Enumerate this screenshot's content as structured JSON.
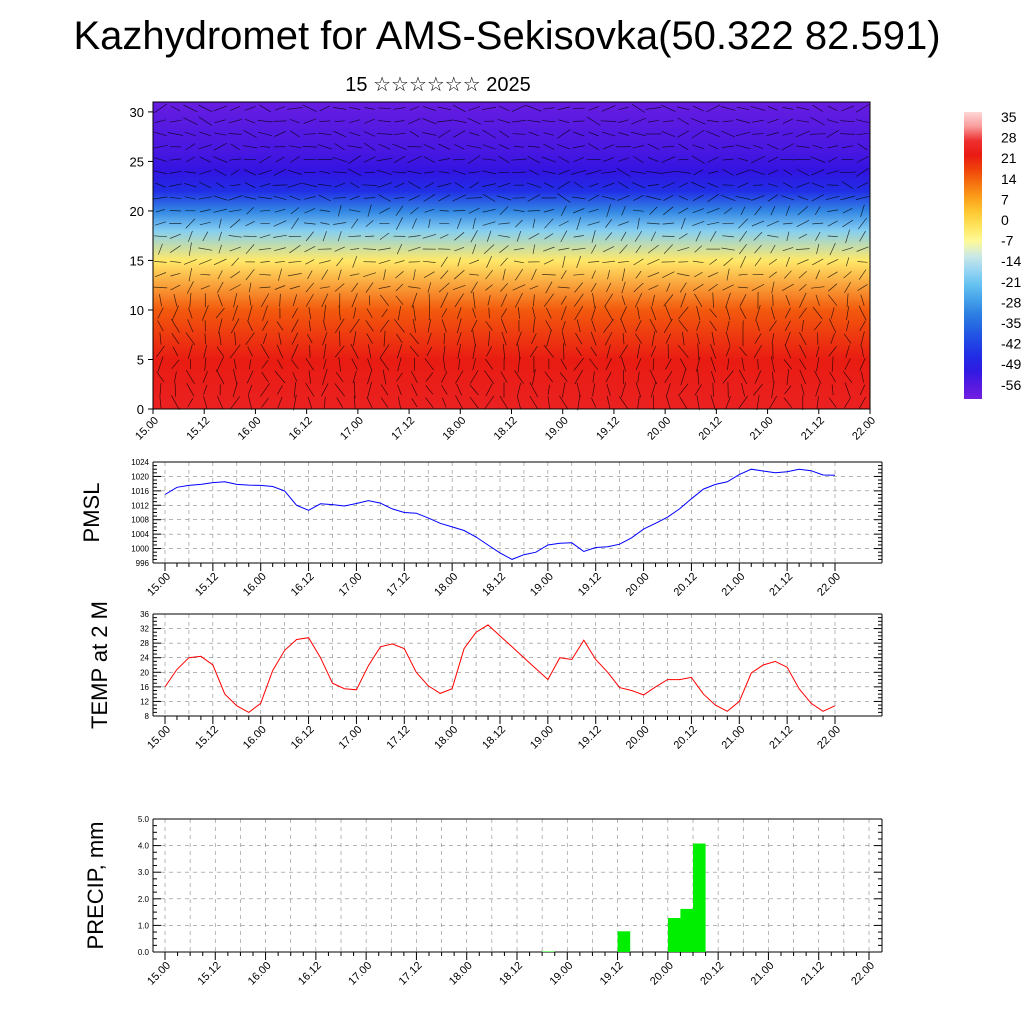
{
  "title": "Kazhydromet for AMS-Sekisovka(50.322 82.591)",
  "subtitle": "15 ☆☆☆☆☆☆ 2025",
  "colors": {
    "pmsl_line": "#0000ff",
    "temp_line": "#ff0000",
    "precip_bar": "#00ee00",
    "frame": "#000000",
    "grid": "#888888"
  },
  "chart_data": [
    {
      "id": "cross_section",
      "type": "heatmap",
      "description_free": true,
      "x_ticks": [
        "15.00",
        "15.12",
        "16.00",
        "16.12",
        "17.00",
        "17.12",
        "18.00",
        "18.12",
        "19.00",
        "19.12",
        "20.00",
        "20.12",
        "21.00",
        "21.12",
        "22.00"
      ],
      "y_ticks": [
        "0",
        "5",
        "10",
        "15",
        "20",
        "25",
        "30"
      ],
      "ylim": [
        0,
        31
      ],
      "colorbar_labels": [
        "35",
        "28",
        "21",
        "14",
        "7",
        "0",
        "-7",
        "-14",
        "-21",
        "-28",
        "-35",
        "-42",
        "-49",
        "-56"
      ],
      "temperature_by_height": [
        [
          0,
          26
        ],
        [
          5,
          23
        ],
        [
          10,
          16
        ],
        [
          15,
          -2
        ],
        [
          18,
          -18
        ],
        [
          20,
          -30
        ],
        [
          22,
          -45
        ],
        [
          24,
          -52
        ],
        [
          26,
          -54
        ],
        [
          28,
          -55
        ],
        [
          31,
          -57
        ]
      ],
      "vectors": true
    },
    {
      "id": "pmsl",
      "type": "line",
      "ylabel": "PMSL",
      "ylim": [
        996,
        1024
      ],
      "y_ticks": [
        "996",
        "1000",
        "1004",
        "1008",
        "1012",
        "1016",
        "1020",
        "1024"
      ],
      "x_ticks": [
        "15.00",
        "15.12",
        "16.00",
        "16.12",
        "17.00",
        "17.12",
        "18.00",
        "18.12",
        "19.00",
        "19.12",
        "20.00",
        "20.12",
        "21.00",
        "21.12",
        "22.00"
      ],
      "x_hours": [
        0,
        3,
        6,
        9,
        12,
        15,
        18,
        21,
        24,
        27,
        30,
        33,
        36,
        39,
        42,
        45,
        48,
        51,
        54,
        57,
        60,
        63,
        66,
        69,
        72,
        75,
        78,
        81,
        84,
        87,
        90,
        93,
        96,
        99,
        102,
        105,
        108,
        111,
        114,
        117,
        120,
        123,
        126,
        129,
        132,
        135,
        138,
        141,
        144,
        147,
        150,
        153,
        156,
        159,
        162,
        165,
        168
      ],
      "series": [
        {
          "values": [
            1015,
            1017,
            1017.5,
            1017.8,
            1018.3,
            1018.5,
            1017.8,
            1017.6,
            1017.5,
            1017.2,
            1016,
            1012,
            1010.6,
            1012.4,
            1012.2,
            1011.8,
            1012.5,
            1013.3,
            1012.6,
            1011,
            1010,
            1009.8,
            1008.5,
            1007,
            1006,
            1005,
            1003.2,
            1001,
            998.8,
            997,
            998.3,
            999,
            1001,
            1001.5,
            1001.6,
            999.2,
            1000.3,
            1000.5,
            1001.2,
            1003,
            1005.4,
            1007,
            1008.7,
            1011,
            1013.8,
            1016.5,
            1017.8,
            1018.5,
            1020.5,
            1022,
            1021.5,
            1021,
            1021.3,
            1022,
            1021.6,
            1020.4,
            1020.3
          ]
        }
      ]
    },
    {
      "id": "temp2m",
      "type": "line",
      "ylabel": "TEMP at 2 M",
      "ylim": [
        8,
        36
      ],
      "y_ticks": [
        "8",
        "12",
        "16",
        "20",
        "24",
        "28",
        "32",
        "36"
      ],
      "x_ticks": [
        "15.00",
        "15.12",
        "16.00",
        "16.12",
        "17.00",
        "17.12",
        "18.00",
        "18.12",
        "19.00",
        "19.12",
        "20.00",
        "20.12",
        "21.00",
        "21.12",
        "22.00"
      ],
      "x_hours": [
        0,
        3,
        6,
        9,
        12,
        15,
        18,
        21,
        24,
        27,
        30,
        33,
        36,
        39,
        42,
        45,
        48,
        51,
        54,
        57,
        60,
        63,
        66,
        69,
        72,
        75,
        78,
        81,
        84,
        87,
        90,
        93,
        96,
        99,
        102,
        105,
        108,
        111,
        114,
        117,
        120,
        123,
        126,
        129,
        132,
        135,
        138,
        141,
        144,
        147,
        150,
        153,
        156,
        159,
        162,
        165,
        168
      ],
      "series": [
        {
          "values": [
            16,
            20.8,
            24,
            24.4,
            22,
            14,
            10.8,
            9,
            11.5,
            20.5,
            26,
            29,
            29.5,
            24,
            17,
            15.5,
            15.2,
            21.8,
            27,
            27.8,
            26.5,
            20,
            16.3,
            14.2,
            15.5,
            26.5,
            31,
            33,
            30,
            27,
            24,
            21,
            18,
            24,
            23.5,
            28.8,
            23.5,
            20,
            15.8,
            15,
            13.8,
            16,
            18,
            18,
            18.6,
            14,
            11,
            9.3,
            12,
            19.8,
            22,
            23,
            21.4,
            15.5,
            11.5,
            9.3,
            10.8
          ]
        }
      ]
    },
    {
      "id": "precip",
      "type": "bar",
      "ylabel": "PRECIP, mm",
      "ylim": [
        0,
        5
      ],
      "y_ticks": [
        "0.0",
        "1.0",
        "2.0",
        "3.0",
        "4.0",
        "5.0"
      ],
      "x_ticks": [
        "15.00",
        "15.12",
        "16.00",
        "16.12",
        "17.00",
        "17.12",
        "18.00",
        "18.12",
        "19.00",
        "19.12",
        "20.00",
        "20.12",
        "21.00",
        "21.12",
        "22.00"
      ],
      "bar_width_hours": 3,
      "bars": [
        {
          "start_hour": 90,
          "value": 0.02
        },
        {
          "start_hour": 108,
          "value": 0.78
        },
        {
          "start_hour": 120,
          "value": 1.28
        },
        {
          "start_hour": 123,
          "value": 1.62
        },
        {
          "start_hour": 126,
          "value": 4.08
        }
      ]
    }
  ]
}
